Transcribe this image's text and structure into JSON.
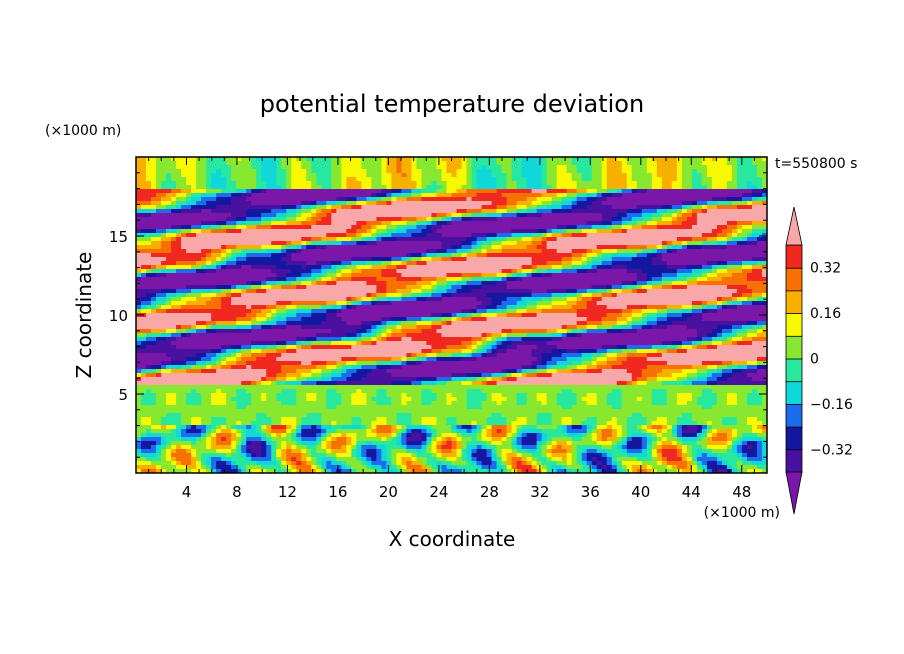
{
  "chart_data": {
    "type": "heatmap",
    "title": "potential temperature deviation",
    "time_label": "t=550800 s",
    "xlabel": "X coordinate",
    "ylabel": "Z coordinate",
    "x_unit": "(×1000 m)",
    "y_unit": "(×1000 m)",
    "xlim": [
      0,
      50
    ],
    "ylim": [
      0,
      20
    ],
    "x_ticks": [
      4,
      8,
      12,
      16,
      20,
      24,
      28,
      32,
      36,
      40,
      44,
      48
    ],
    "y_ticks": [
      5,
      10,
      15
    ],
    "colorbar": {
      "levels": [
        -0.4,
        -0.32,
        -0.24,
        -0.16,
        -0.08,
        0,
        0.08,
        0.16,
        0.24,
        0.32,
        0.4
      ],
      "labels": [
        "0.32",
        "0.16",
        "0",
        "−0.16",
        "−0.32"
      ],
      "label_values": [
        0.32,
        0.16,
        0,
        -0.16,
        -0.32
      ],
      "colors": [
        "#7a16a8",
        "#4a10a0",
        "#1418a0",
        "#1c6cf0",
        "#10d8d8",
        "#28e8a0",
        "#88e830",
        "#f8f800",
        "#f8b000",
        "#f87000",
        "#f02820",
        "#f8a8a8"
      ],
      "extend": "both"
    },
    "field_description_bands": [
      {
        "z_range": [
          0,
          3
        ],
        "pattern": "convective plumes"
      },
      {
        "z_range": [
          3,
          5.5
        ],
        "pattern": "near-neutral layer"
      },
      {
        "z_range": [
          5.5,
          18
        ],
        "pattern": "tilted alternating bands"
      },
      {
        "z_range": [
          18,
          20
        ],
        "pattern": "weak waves"
      }
    ]
  }
}
